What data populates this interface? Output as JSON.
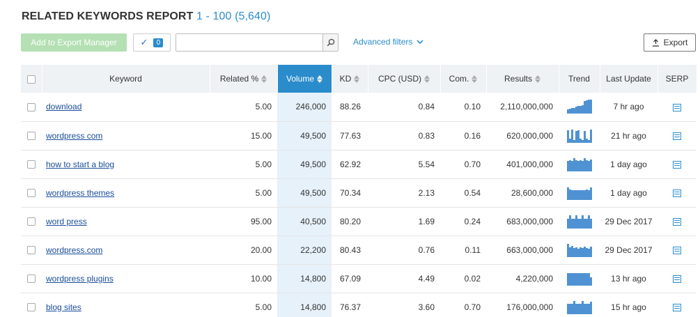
{
  "report": {
    "title": "RELATED KEYWORDS REPORT",
    "range": "1 - 100 (5,640)"
  },
  "toolbar": {
    "add_export_label": "Add to Export Manager",
    "selected_count": "0",
    "search_value": "",
    "advanced_filters_label": "Advanced filters",
    "export_label": "Export"
  },
  "columns": {
    "keyword": "Keyword",
    "related": "Related %",
    "volume": "Volume",
    "kd": "KD",
    "cpc": "CPC (USD)",
    "com": "Com.",
    "results": "Results",
    "trend": "Trend",
    "last_update": "Last Update",
    "serp": "SERP"
  },
  "rows": [
    {
      "keyword": "download",
      "related": "5.00",
      "volume": "246,000",
      "kd": "88.26",
      "cpc": "0.84",
      "com": "0.10",
      "results": "2,110,000,000",
      "last_update": "7 hr ago",
      "trend": [
        0.3,
        0.35,
        0.4,
        0.4,
        0.5,
        0.55,
        0.55,
        0.6,
        0.9,
        0.95,
        1.0,
        1.0
      ]
    },
    {
      "keyword": "wordpress com",
      "related": "15.00",
      "volume": "49,500",
      "kd": "77.63",
      "cpc": "0.83",
      "com": "0.16",
      "results": "620,000,000",
      "last_update": "21 hr ago",
      "trend": [
        0.9,
        0.3,
        0.95,
        0.2,
        0.85,
        0.9,
        0.3,
        0.2,
        0.85,
        0.3,
        0.2,
        0.95
      ]
    },
    {
      "keyword": "how to start a blog",
      "related": "5.00",
      "volume": "49,500",
      "kd": "62.92",
      "cpc": "5.54",
      "com": "0.70",
      "results": "401,000,000",
      "last_update": "1 day ago",
      "trend": [
        0.75,
        0.8,
        0.75,
        0.95,
        0.8,
        0.75,
        0.8,
        0.75,
        0.95,
        0.8,
        0.75,
        0.85
      ]
    },
    {
      "keyword": "wordpress themes",
      "related": "5.00",
      "volume": "49,500",
      "kd": "70.34",
      "cpc": "2.13",
      "com": "0.54",
      "results": "28,600,000",
      "last_update": "1 day ago",
      "trend": [
        0.9,
        0.75,
        0.7,
        0.7,
        0.7,
        0.7,
        0.7,
        0.7,
        0.7,
        0.75,
        0.7,
        0.9
      ]
    },
    {
      "keyword": "word press",
      "related": "95.00",
      "volume": "40,500",
      "kd": "80.20",
      "cpc": "1.69",
      "com": "0.24",
      "results": "683,000,000",
      "last_update": "29 Dec 2017",
      "trend": [
        0.7,
        0.95,
        0.7,
        0.7,
        0.95,
        0.7,
        0.7,
        0.95,
        0.7,
        0.7,
        0.95,
        0.7
      ]
    },
    {
      "keyword": "wordpress.com",
      "related": "20.00",
      "volume": "22,200",
      "kd": "80.43",
      "cpc": "0.76",
      "com": "0.11",
      "results": "663,000,000",
      "last_update": "29 Dec 2017",
      "trend": [
        0.95,
        0.7,
        0.8,
        0.65,
        0.7,
        0.6,
        0.7,
        0.65,
        0.75,
        0.65,
        0.6,
        0.75
      ]
    },
    {
      "keyword": "wordpress plugins",
      "related": "10.00",
      "volume": "14,800",
      "kd": "67.09",
      "cpc": "4.49",
      "com": "0.02",
      "results": "4,220,000",
      "last_update": "13 hr ago",
      "trend": [
        0.9,
        0.9,
        0.9,
        0.9,
        0.9,
        0.9,
        0.9,
        0.9,
        0.9,
        0.9,
        0.9,
        0.6
      ]
    },
    {
      "keyword": "blog sites",
      "related": "5.00",
      "volume": "14,800",
      "kd": "76.37",
      "cpc": "3.60",
      "com": "0.70",
      "results": "176,000,000",
      "last_update": "15 hr ago",
      "trend": [
        0.75,
        0.75,
        0.75,
        0.95,
        0.75,
        0.75,
        0.75,
        0.95,
        0.75,
        0.75,
        0.75,
        0.9
      ]
    }
  ]
}
